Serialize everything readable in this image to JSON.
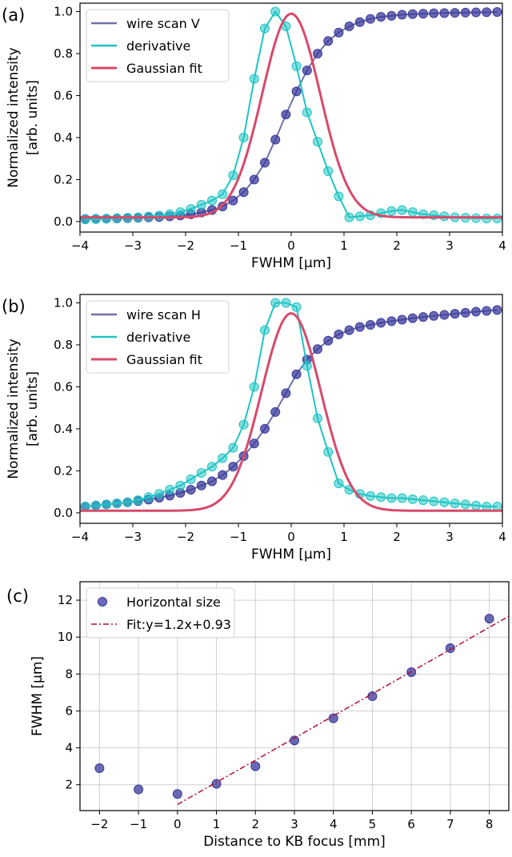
{
  "colors": {
    "wire_scan": "#7070a8",
    "wire_scan_marker": "#3a3a9c",
    "derivative": "#20c4c4",
    "gaussian": "#d84a6a",
    "fit_line": "#b01030",
    "grid": "#cfcfcf"
  },
  "chart_data": [
    {
      "type": "line",
      "panel_label": "(a)",
      "title": "",
      "xlabel": "FWHM [µm]",
      "ylabel": "Normalized intensity\n[arb. units]",
      "xlim": [
        -4,
        4
      ],
      "ylim": [
        -0.05,
        1.04
      ],
      "xticks": [
        -4,
        -3,
        -2,
        -1,
        0,
        1,
        2,
        3,
        4
      ],
      "yticks": [
        0.0,
        0.2,
        0.4,
        0.6,
        0.8,
        1.0
      ],
      "grid": false,
      "legend_position": "top-left",
      "series": [
        {
          "name": "wire scan V",
          "style": "line+markers",
          "x": [
            -3.9,
            -3.7,
            -3.5,
            -3.3,
            -3.1,
            -2.9,
            -2.7,
            -2.5,
            -2.3,
            -2.1,
            -1.9,
            -1.7,
            -1.5,
            -1.3,
            -1.1,
            -0.9,
            -0.7,
            -0.5,
            -0.3,
            -0.1,
            0.1,
            0.3,
            0.5,
            0.7,
            0.9,
            1.1,
            1.3,
            1.5,
            1.7,
            1.9,
            2.1,
            2.3,
            2.5,
            2.7,
            2.9,
            3.1,
            3.3,
            3.5,
            3.7,
            3.9
          ],
          "y": [
            0.012,
            0.013,
            0.014,
            0.015,
            0.016,
            0.018,
            0.02,
            0.022,
            0.025,
            0.029,
            0.035,
            0.043,
            0.055,
            0.072,
            0.1,
            0.14,
            0.2,
            0.28,
            0.39,
            0.51,
            0.62,
            0.72,
            0.8,
            0.86,
            0.9,
            0.93,
            0.95,
            0.965,
            0.975,
            0.98,
            0.985,
            0.988,
            0.99,
            0.992,
            0.993,
            0.994,
            0.995,
            0.996,
            0.997,
            0.998
          ]
        },
        {
          "name": "derivative",
          "style": "line+markers",
          "x": [
            -3.9,
            -3.7,
            -3.5,
            -3.3,
            -3.1,
            -2.9,
            -2.7,
            -2.5,
            -2.3,
            -2.1,
            -1.9,
            -1.7,
            -1.5,
            -1.3,
            -1.1,
            -0.9,
            -0.7,
            -0.5,
            -0.3,
            -0.1,
            0.1,
            0.3,
            0.5,
            0.7,
            0.9,
            1.1,
            1.3,
            1.5,
            1.7,
            1.9,
            2.1,
            2.3,
            2.5,
            2.7,
            2.9,
            3.1,
            3.3,
            3.5,
            3.7,
            3.9
          ],
          "y": [
            0.01,
            0.012,
            0.014,
            0.016,
            0.018,
            0.02,
            0.024,
            0.028,
            0.035,
            0.045,
            0.06,
            0.08,
            0.1,
            0.13,
            0.22,
            0.4,
            0.68,
            0.92,
            1.0,
            0.93,
            0.74,
            0.52,
            0.38,
            0.24,
            0.12,
            0.02,
            0.025,
            0.03,
            0.04,
            0.05,
            0.055,
            0.045,
            0.035,
            0.03,
            0.025,
            0.02,
            0.018,
            0.016,
            0.015,
            0.015
          ]
        },
        {
          "name": "Gaussian fit",
          "style": "line",
          "gaussian": {
            "amplitude": 0.97,
            "center": 0.0,
            "sigma": 0.55,
            "offset": 0.02
          }
        }
      ]
    },
    {
      "type": "line",
      "panel_label": "(b)",
      "title": "",
      "xlabel": "FWHM [µm]",
      "ylabel": "Normalized intensity\n[arb. units]",
      "xlim": [
        -4,
        4
      ],
      "ylim": [
        -0.05,
        1.04
      ],
      "xticks": [
        -4,
        -3,
        -2,
        -1,
        0,
        1,
        2,
        3,
        4
      ],
      "yticks": [
        0.0,
        0.2,
        0.4,
        0.6,
        0.8,
        1.0
      ],
      "grid": false,
      "legend_position": "top-left",
      "series": [
        {
          "name": "wire scan H",
          "style": "line+markers",
          "x": [
            -3.9,
            -3.7,
            -3.5,
            -3.3,
            -3.1,
            -2.9,
            -2.7,
            -2.5,
            -2.3,
            -2.1,
            -1.9,
            -1.7,
            -1.5,
            -1.3,
            -1.1,
            -0.9,
            -0.7,
            -0.5,
            -0.3,
            -0.1,
            0.1,
            0.3,
            0.5,
            0.7,
            0.9,
            1.1,
            1.3,
            1.5,
            1.7,
            1.9,
            2.1,
            2.3,
            2.5,
            2.7,
            2.9,
            3.1,
            3.3,
            3.5,
            3.7,
            3.9
          ],
          "y": [
            0.03,
            0.035,
            0.04,
            0.045,
            0.05,
            0.056,
            0.063,
            0.072,
            0.082,
            0.095,
            0.11,
            0.13,
            0.15,
            0.18,
            0.22,
            0.27,
            0.33,
            0.4,
            0.48,
            0.57,
            0.66,
            0.73,
            0.78,
            0.82,
            0.85,
            0.87,
            0.885,
            0.895,
            0.905,
            0.913,
            0.92,
            0.927,
            0.933,
            0.938,
            0.943,
            0.948,
            0.953,
            0.958,
            0.962,
            0.966
          ]
        },
        {
          "name": "derivative",
          "style": "line+markers",
          "x": [
            -3.9,
            -3.7,
            -3.5,
            -3.3,
            -3.1,
            -2.9,
            -2.7,
            -2.5,
            -2.3,
            -2.1,
            -1.9,
            -1.7,
            -1.5,
            -1.3,
            -1.1,
            -0.9,
            -0.7,
            -0.5,
            -0.3,
            -0.1,
            0.1,
            0.3,
            0.5,
            0.7,
            0.9,
            1.1,
            1.3,
            1.5,
            1.7,
            1.9,
            2.1,
            2.3,
            2.5,
            2.7,
            2.9,
            3.1,
            3.3,
            3.5,
            3.7,
            3.9
          ],
          "y": [
            0.03,
            0.035,
            0.04,
            0.045,
            0.05,
            0.06,
            0.075,
            0.09,
            0.11,
            0.13,
            0.16,
            0.19,
            0.22,
            0.26,
            0.31,
            0.42,
            0.6,
            0.87,
            1.0,
            1.0,
            0.98,
            0.7,
            0.45,
            0.29,
            0.14,
            0.11,
            0.09,
            0.08,
            0.075,
            0.07,
            0.07,
            0.065,
            0.06,
            0.055,
            0.05,
            0.045,
            0.04,
            0.035,
            0.03,
            0.03
          ]
        },
        {
          "name": "Gaussian fit",
          "style": "line",
          "gaussian": {
            "amplitude": 0.94,
            "center": 0.0,
            "sigma": 0.56,
            "offset": 0.01
          }
        }
      ]
    },
    {
      "type": "scatter",
      "panel_label": "(c)",
      "title": "",
      "xlabel": "Distance to KB focus [mm]",
      "ylabel": "FWHM [µm]",
      "xlim": [
        -2.5,
        8.5
      ],
      "ylim": [
        0.6,
        13.0
      ],
      "xticks": [
        -2,
        -1,
        0,
        1,
        2,
        3,
        4,
        5,
        6,
        7,
        8
      ],
      "yticks": [
        2,
        4,
        6,
        8,
        10,
        12
      ],
      "grid": true,
      "legend_position": "top-left",
      "series": [
        {
          "name": "Horizontal size",
          "style": "markers",
          "x": [
            -2,
            -1,
            0,
            1,
            2,
            3,
            4,
            5,
            6,
            7,
            8
          ],
          "y": [
            2.9,
            1.75,
            1.5,
            2.05,
            3.0,
            4.4,
            5.6,
            6.8,
            8.1,
            9.4,
            11.0
          ]
        },
        {
          "name": "Fit:y=1.2x+0.93",
          "style": "dashdot-line",
          "fit": {
            "slope": 1.2,
            "intercept": 0.93,
            "x_start": 0
          }
        }
      ]
    }
  ]
}
